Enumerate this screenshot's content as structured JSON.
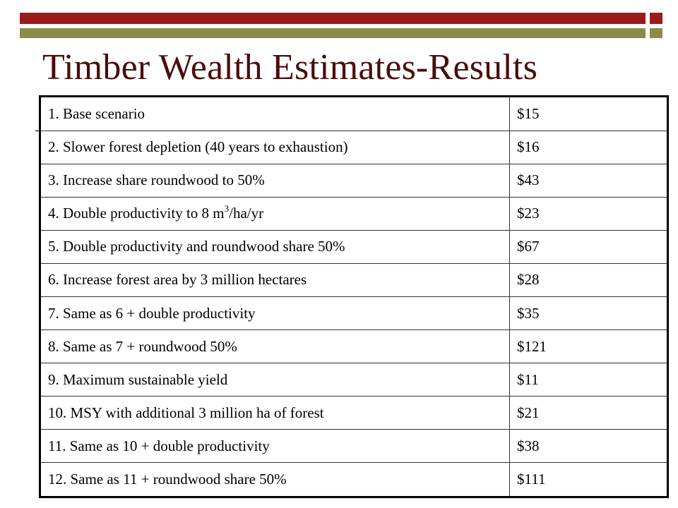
{
  "slide": {
    "title": "Timber Wealth Estimates-Results"
  },
  "colors": {
    "accent_red": "#9b1b1b",
    "accent_olive": "#8c8c4a",
    "title_color": "#4a0d0d"
  },
  "table": {
    "rows": [
      {
        "label": "1. Base scenario",
        "value": "$15"
      },
      {
        "label": "2. Slower forest depletion (40 years to exhaustion)",
        "value": "$16"
      },
      {
        "label": "3. Increase share roundwood to 50%",
        "value": "$43"
      },
      {
        "label_pre": "4. Double productivity to 8 m",
        "label_sup": "3",
        "label_post": "/ha/yr",
        "value": "$23"
      },
      {
        "label": "5. Double productivity and roundwood share 50%",
        "value": "$67"
      },
      {
        "label": "6. Increase forest area by 3 million hectares",
        "value": "$28"
      },
      {
        "label": "7. Same as 6 + double productivity",
        "value": "$35"
      },
      {
        "label": "8. Same as 7 + roundwood 50%",
        "value": "$121"
      },
      {
        "label": "9. Maximum sustainable yield",
        "value": "$11"
      },
      {
        "label": "10. MSY with additional 3 million ha of forest",
        "value": "$21"
      },
      {
        "label": "11. Same as 10 + double productivity",
        "value": "$38"
      },
      {
        "label": "12. Same as 11 + roundwood share 50%",
        "value": "$111"
      }
    ]
  }
}
